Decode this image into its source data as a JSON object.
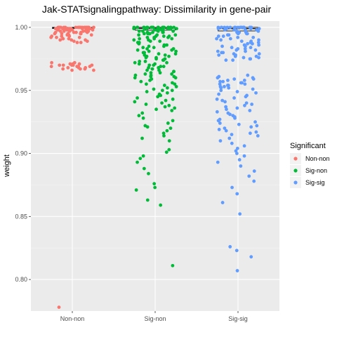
{
  "chart_data": {
    "type": "scatter",
    "title": "Jak-STATsignalingpathway: Dissimilarity in gene-pair",
    "xlabel": "",
    "ylabel": "weight",
    "categories": [
      "Non-non",
      "Sig-non",
      "Sig-sig"
    ],
    "ylim": [
      0.775,
      1.005
    ],
    "yticks": [
      0.8,
      0.85,
      0.9,
      0.95,
      1.0
    ],
    "ytick_labels": [
      "0.80",
      "0.85",
      "0.90",
      "0.95",
      "1.00"
    ],
    "grid": true,
    "legend": {
      "title": "Significant",
      "position": "right",
      "entries": [
        "Non-non",
        "Sig-non",
        "Sig-sig"
      ]
    },
    "colors": {
      "Non-non": "#F8766D",
      "Sig-non": "#00BA38",
      "Sig-sig": "#619CFF"
    },
    "boxplots": [
      {
        "category": "Non-non",
        "q1": 0.9992,
        "median": 0.9997,
        "q3": 1.0
      },
      {
        "category": "Sig-non",
        "q1": 0.9978,
        "median": 0.9992,
        "q3": 1.0
      },
      {
        "category": "Sig-sig",
        "q1": 0.9972,
        "median": 0.999,
        "q3": 1.0
      }
    ],
    "series": [
      {
        "name": "Non-non",
        "category": "Non-non",
        "values": [
          1.0,
          1.0,
          1.0,
          1.0,
          1.0,
          1.0,
          1.0,
          1.0,
          1.0,
          1.0,
          1.0,
          1.0,
          1.0,
          1.0,
          1.0,
          1.0,
          1.0,
          1.0,
          1.0,
          1.0,
          0.999,
          0.999,
          0.999,
          0.999,
          0.999,
          0.999,
          0.999,
          0.999,
          0.999,
          0.999,
          0.998,
          0.998,
          0.998,
          0.998,
          0.998,
          0.998,
          0.998,
          0.998,
          0.997,
          0.997,
          0.997,
          0.997,
          0.997,
          0.997,
          0.996,
          0.996,
          0.996,
          0.996,
          0.996,
          0.995,
          0.995,
          0.995,
          0.995,
          0.995,
          0.994,
          0.994,
          0.994,
          0.994,
          0.993,
          0.993,
          0.993,
          0.992,
          0.992,
          0.992,
          0.991,
          0.991,
          0.991,
          0.99,
          0.99,
          0.99,
          0.989,
          0.989,
          0.988,
          0.988,
          0.972,
          0.972,
          0.971,
          0.971,
          0.971,
          0.97,
          0.97,
          0.97,
          0.97,
          0.97,
          0.969,
          0.969,
          0.969,
          0.969,
          0.968,
          0.968,
          0.968,
          0.967,
          0.967,
          0.967,
          0.966,
          0.966,
          0.778
        ]
      },
      {
        "name": "Sig-non",
        "category": "Sig-non",
        "values": [
          1.0,
          1.0,
          1.0,
          1.0,
          1.0,
          1.0,
          1.0,
          1.0,
          1.0,
          1.0,
          1.0,
          1.0,
          1.0,
          1.0,
          1.0,
          1.0,
          1.0,
          1.0,
          1.0,
          1.0,
          0.999,
          0.999,
          0.999,
          0.999,
          0.999,
          0.999,
          0.999,
          0.999,
          0.998,
          0.998,
          0.998,
          0.998,
          0.998,
          0.998,
          0.997,
          0.997,
          0.997,
          0.997,
          0.997,
          0.996,
          0.996,
          0.996,
          0.996,
          0.995,
          0.995,
          0.995,
          0.995,
          0.994,
          0.994,
          0.994,
          0.993,
          0.993,
          0.993,
          0.992,
          0.992,
          0.992,
          0.991,
          0.991,
          0.991,
          0.99,
          0.99,
          0.989,
          0.989,
          0.988,
          0.988,
          0.987,
          0.987,
          0.986,
          0.986,
          0.985,
          0.985,
          0.984,
          0.984,
          0.983,
          0.983,
          0.982,
          0.982,
          0.981,
          0.981,
          0.98,
          0.98,
          0.979,
          0.979,
          0.978,
          0.978,
          0.977,
          0.977,
          0.976,
          0.976,
          0.975,
          0.975,
          0.974,
          0.974,
          0.973,
          0.973,
          0.972,
          0.972,
          0.971,
          0.971,
          0.97,
          0.97,
          0.969,
          0.969,
          0.968,
          0.968,
          0.967,
          0.967,
          0.966,
          0.966,
          0.965,
          0.965,
          0.964,
          0.964,
          0.963,
          0.963,
          0.962,
          0.962,
          0.961,
          0.961,
          0.96,
          0.96,
          0.959,
          0.958,
          0.957,
          0.956,
          0.955,
          0.955,
          0.954,
          0.953,
          0.952,
          0.951,
          0.95,
          0.95,
          0.949,
          0.948,
          0.947,
          0.946,
          0.945,
          0.944,
          0.943,
          0.942,
          0.941,
          0.94,
          0.939,
          0.938,
          0.937,
          0.936,
          0.935,
          0.934,
          0.932,
          0.93,
          0.928,
          0.926,
          0.924,
          0.922,
          0.921,
          0.92,
          0.918,
          0.916,
          0.914,
          0.912,
          0.91,
          0.903,
          0.901,
          0.898,
          0.896,
          0.893,
          0.888,
          0.884,
          0.876,
          0.873,
          0.871,
          0.863,
          0.859,
          0.811
        ]
      },
      {
        "name": "Sig-sig",
        "category": "Sig-sig",
        "values": [
          1.0,
          1.0,
          1.0,
          1.0,
          1.0,
          1.0,
          1.0,
          1.0,
          1.0,
          1.0,
          1.0,
          1.0,
          1.0,
          1.0,
          1.0,
          1.0,
          1.0,
          1.0,
          0.999,
          0.999,
          0.999,
          0.999,
          0.999,
          0.998,
          0.998,
          0.998,
          0.998,
          0.997,
          0.997,
          0.997,
          0.996,
          0.996,
          0.996,
          0.995,
          0.995,
          0.995,
          0.994,
          0.994,
          0.993,
          0.993,
          0.992,
          0.992,
          0.991,
          0.991,
          0.99,
          0.99,
          0.989,
          0.989,
          0.988,
          0.988,
          0.987,
          0.987,
          0.986,
          0.986,
          0.985,
          0.985,
          0.984,
          0.984,
          0.983,
          0.983,
          0.982,
          0.982,
          0.981,
          0.981,
          0.98,
          0.98,
          0.979,
          0.979,
          0.978,
          0.978,
          0.977,
          0.977,
          0.976,
          0.976,
          0.975,
          0.975,
          0.974,
          0.974,
          0.962,
          0.961,
          0.96,
          0.96,
          0.959,
          0.959,
          0.958,
          0.958,
          0.957,
          0.957,
          0.956,
          0.956,
          0.955,
          0.955,
          0.954,
          0.954,
          0.953,
          0.953,
          0.952,
          0.952,
          0.951,
          0.95,
          0.949,
          0.948,
          0.947,
          0.946,
          0.945,
          0.944,
          0.943,
          0.942,
          0.941,
          0.94,
          0.939,
          0.938,
          0.937,
          0.936,
          0.935,
          0.934,
          0.933,
          0.932,
          0.931,
          0.93,
          0.929,
          0.928,
          0.927,
          0.926,
          0.925,
          0.924,
          0.923,
          0.922,
          0.921,
          0.92,
          0.919,
          0.918,
          0.917,
          0.916,
          0.915,
          0.914,
          0.912,
          0.91,
          0.908,
          0.906,
          0.904,
          0.902,
          0.9,
          0.898,
          0.895,
          0.893,
          0.89,
          0.886,
          0.882,
          0.878,
          0.873,
          0.868,
          0.861,
          0.852,
          0.826,
          0.823,
          0.818,
          0.807
        ]
      }
    ]
  }
}
